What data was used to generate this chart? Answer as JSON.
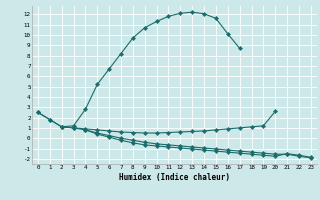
{
  "xlabel": "Humidex (Indice chaleur)",
  "bg_color": "#cce8e8",
  "grid_color": "#ffffff",
  "line_color": "#1a6b6b",
  "xlim": [
    -0.5,
    23.5
  ],
  "ylim": [
    -2.5,
    12.8
  ],
  "xticks": [
    0,
    1,
    2,
    3,
    4,
    5,
    6,
    7,
    8,
    9,
    10,
    11,
    12,
    13,
    14,
    15,
    16,
    17,
    18,
    19,
    20,
    21,
    22,
    23
  ],
  "yticks": [
    -2,
    -1,
    0,
    1,
    2,
    3,
    4,
    5,
    6,
    7,
    8,
    9,
    10,
    11,
    12
  ],
  "curve1_x": [
    0,
    1,
    2,
    3,
    4,
    5,
    6,
    7,
    8,
    9,
    10,
    11,
    12,
    13,
    14,
    15,
    16,
    17
  ],
  "curve1_y": [
    2.5,
    1.8,
    1.1,
    1.2,
    2.8,
    5.2,
    6.7,
    8.2,
    9.7,
    10.7,
    11.3,
    11.8,
    12.1,
    12.2,
    12.05,
    11.6,
    10.1,
    8.7
  ],
  "curve2_x": [
    0,
    1,
    2,
    3,
    4,
    5,
    6,
    7,
    8,
    9,
    10,
    11,
    12,
    13,
    14,
    15,
    16,
    17,
    18,
    19,
    20,
    21,
    22,
    23
  ],
  "curve2_y": [
    2.5,
    1.8,
    1.1,
    1.0,
    0.9,
    0.8,
    0.7,
    0.6,
    0.55,
    0.5,
    0.5,
    0.55,
    0.6,
    0.65,
    0.7,
    0.8,
    0.9,
    1.0,
    1.1,
    1.2,
    2.6,
    null,
    null,
    null
  ],
  "curve3_x": [
    2,
    3,
    4,
    5,
    6,
    7,
    8,
    9,
    10,
    11,
    12,
    13,
    14,
    15,
    16,
    17,
    18,
    19,
    20,
    21,
    22,
    23
  ],
  "curve3_y": [
    1.1,
    1.0,
    0.8,
    0.5,
    0.25,
    0.0,
    -0.2,
    -0.4,
    -0.55,
    -0.65,
    -0.75,
    -0.85,
    -0.95,
    -1.05,
    -1.15,
    -1.25,
    -1.35,
    -1.45,
    -1.55,
    -1.55,
    -1.75,
    -1.9
  ],
  "curve4_x": [
    4,
    5,
    6,
    7,
    8,
    9,
    10,
    11,
    12,
    13,
    14,
    15,
    16,
    17,
    18,
    19,
    20,
    21,
    22,
    23
  ],
  "curve4_y": [
    0.8,
    0.4,
    0.1,
    -0.2,
    -0.45,
    -0.65,
    -0.75,
    -0.85,
    -0.95,
    -1.05,
    -1.15,
    -1.25,
    -1.35,
    -1.45,
    -1.55,
    -1.65,
    -1.75,
    -1.5,
    -1.65,
    -1.85
  ]
}
